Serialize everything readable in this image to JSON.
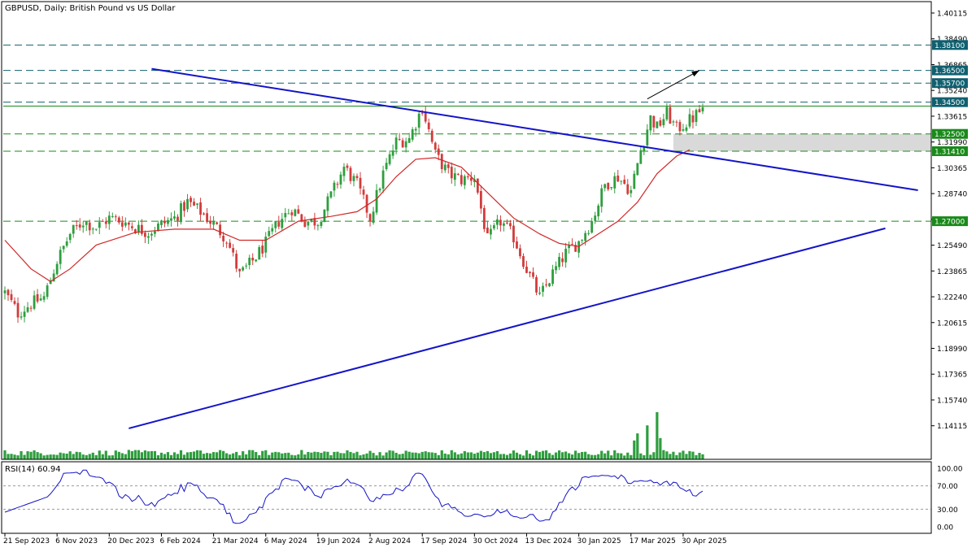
{
  "title": "GBPUSD, Daily:  British Pound vs US Dollar",
  "colors": {
    "bull": "#2e9e3e",
    "bear": "#d23c3c",
    "ma": "#d02828",
    "trend": "#1414c8",
    "level_green": "#1a8a1a",
    "level_teal": "#106070",
    "volume": "#2e9e3e",
    "rsi": "#1414c8",
    "zone": "#d0d0d0"
  },
  "price_axis": {
    "min": 1.12,
    "max": 1.40115,
    "ticks": [
      "1.40115",
      "1.38490",
      "1.36865",
      "1.35240",
      "1.33615",
      "1.31990",
      "1.30365",
      "1.28740",
      "1.27115",
      "1.25490",
      "1.23865",
      "1.22240",
      "1.20615",
      "1.18990",
      "1.17365",
      "1.15740",
      "1.14115"
    ]
  },
  "level_labels": [
    {
      "value": 1.381,
      "label": "1.38100",
      "color": "level_teal"
    },
    {
      "value": 1.365,
      "label": "1.36500",
      "color": "level_teal"
    },
    {
      "value": 1.357,
      "label": "1.35700",
      "color": "level_teal"
    },
    {
      "value": 1.345,
      "label": "1.34500",
      "color": "level_teal"
    },
    {
      "value": 1.325,
      "label": "1.32500",
      "color": "level_green"
    },
    {
      "value": 1.3141,
      "label": "1.31410",
      "color": "level_green"
    },
    {
      "value": 1.27,
      "label": "1.27000",
      "color": "level_green"
    }
  ],
  "dashed_levels": [
    {
      "value": 1.381,
      "color": "level_teal"
    },
    {
      "value": 1.365,
      "color": "level_teal"
    },
    {
      "value": 1.357,
      "color": "level_teal"
    },
    {
      "value": 1.345,
      "color": "level_teal"
    },
    {
      "value": 1.325,
      "color": "level_green"
    },
    {
      "value": 1.3141,
      "color": "level_green"
    },
    {
      "value": 1.27,
      "color": "level_green"
    }
  ],
  "solid_levels": [
    {
      "value": 1.3425,
      "color": "level_green"
    }
  ],
  "support_zone": {
    "from": 1.3141,
    "to": 1.325,
    "start_bar": 205
  },
  "chart_data": {
    "type": "candlestick",
    "title": "GBPUSD, Daily:  British Pound vs US Dollar",
    "indicator": "RSI(14) 60.94",
    "x_ticks": [
      {
        "bar": 0,
        "label": "21 Sep 2023"
      },
      {
        "bar": 16,
        "label": "6 Nov 2023"
      },
      {
        "bar": 32,
        "label": "20 Dec 2023"
      },
      {
        "bar": 48,
        "label": "6 Feb 2024"
      },
      {
        "bar": 64,
        "label": "21 Mar 2024"
      },
      {
        "bar": 80,
        "label": "6 May 2024"
      },
      {
        "bar": 96,
        "label": "19 Jun 2024"
      },
      {
        "bar": 112,
        "label": "2 Aug 2024"
      },
      {
        "bar": 128,
        "label": "17 Sep 2024"
      },
      {
        "bar": 144,
        "label": "30 Oct 2024"
      },
      {
        "bar": 160,
        "label": "13 Dec 2024"
      },
      {
        "bar": 176,
        "label": "30 Jan 2025"
      },
      {
        "bar": 192,
        "label": "17 Mar 2025"
      },
      {
        "bar": 208,
        "label": "30 Apr 2025"
      }
    ],
    "bar_count": 215,
    "close_path": [
      [
        0,
        1.225
      ],
      [
        4,
        1.212
      ],
      [
        8,
        1.218
      ],
      [
        12,
        1.222
      ],
      [
        16,
        1.245
      ],
      [
        20,
        1.262
      ],
      [
        24,
        1.27
      ],
      [
        28,
        1.266
      ],
      [
        32,
        1.272
      ],
      [
        36,
        1.27
      ],
      [
        40,
        1.266
      ],
      [
        44,
        1.263
      ],
      [
        48,
        1.268
      ],
      [
        52,
        1.272
      ],
      [
        56,
        1.282
      ],
      [
        60,
        1.276
      ],
      [
        64,
        1.268
      ],
      [
        68,
        1.259
      ],
      [
        72,
        1.236
      ],
      [
        76,
        1.245
      ],
      [
        80,
        1.256
      ],
      [
        84,
        1.27
      ],
      [
        88,
        1.278
      ],
      [
        92,
        1.27
      ],
      [
        96,
        1.27
      ],
      [
        100,
        1.286
      ],
      [
        104,
        1.304
      ],
      [
        108,
        1.293
      ],
      [
        112,
        1.272
      ],
      [
        116,
        1.3
      ],
      [
        120,
        1.32
      ],
      [
        124,
        1.322
      ],
      [
        128,
        1.342
      ],
      [
        132,
        1.312
      ],
      [
        136,
        1.3
      ],
      [
        140,
        1.296
      ],
      [
        144,
        1.298
      ],
      [
        148,
        1.258
      ],
      [
        152,
        1.27
      ],
      [
        156,
        1.26
      ],
      [
        160,
        1.24
      ],
      [
        164,
        1.222
      ],
      [
        168,
        1.237
      ],
      [
        172,
        1.25
      ],
      [
        176,
        1.257
      ],
      [
        180,
        1.27
      ],
      [
        184,
        1.293
      ],
      [
        188,
        1.298
      ],
      [
        192,
        1.289
      ],
      [
        195,
        1.315
      ],
      [
        198,
        1.335
      ],
      [
        200,
        1.329
      ],
      [
        203,
        1.338
      ],
      [
        206,
        1.328
      ],
      [
        209,
        1.332
      ],
      [
        211,
        1.335
      ],
      [
        214,
        1.341
      ]
    ],
    "ma_path": [
      [
        0,
        1.258
      ],
      [
        8,
        1.24
      ],
      [
        14,
        1.232
      ],
      [
        20,
        1.24
      ],
      [
        28,
        1.255
      ],
      [
        40,
        1.263
      ],
      [
        52,
        1.265
      ],
      [
        64,
        1.265
      ],
      [
        72,
        1.258
      ],
      [
        80,
        1.258
      ],
      [
        90,
        1.27
      ],
      [
        100,
        1.273
      ],
      [
        108,
        1.276
      ],
      [
        114,
        1.284
      ],
      [
        120,
        1.298
      ],
      [
        126,
        1.309
      ],
      [
        132,
        1.31
      ],
      [
        140,
        1.304
      ],
      [
        148,
        1.288
      ],
      [
        156,
        1.272
      ],
      [
        164,
        1.262
      ],
      [
        170,
        1.256
      ],
      [
        176,
        1.254
      ],
      [
        182,
        1.262
      ],
      [
        188,
        1.27
      ],
      [
        194,
        1.282
      ],
      [
        200,
        1.3
      ],
      [
        206,
        1.311
      ],
      [
        210,
        1.315
      ]
    ],
    "trendlines": [
      {
        "from": [
          45,
          1.366
        ],
        "to": [
          280,
          1.2895
        ]
      },
      {
        "from": [
          38,
          1.1395
        ],
        "to": [
          270,
          1.2655
        ]
      }
    ],
    "arrow": {
      "from": [
        197,
        1.347
      ],
      "to": [
        213,
        1.365
      ]
    },
    "volume_spikes": [
      [
        193,
        0.4
      ],
      [
        194,
        0.55
      ],
      [
        197,
        0.72
      ],
      [
        200,
        1.0
      ],
      [
        201,
        0.45
      ]
    ],
    "rsi": {
      "levels": [
        70,
        30
      ],
      "ticks": [
        "100.00",
        "70.00",
        "30.00",
        "0.00"
      ],
      "last": 60.94
    }
  }
}
